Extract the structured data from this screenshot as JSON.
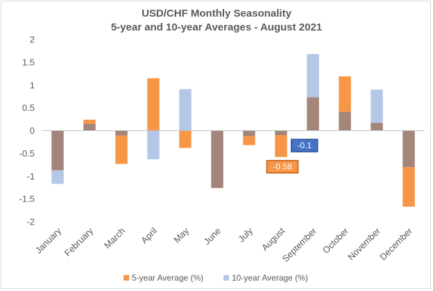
{
  "chart_data": {
    "type": "bar",
    "title": "USD/CHF Monthly Seasonality",
    "subtitle": "5-year and 10-year Averages - August 2021",
    "categories": [
      "January",
      "February",
      "March",
      "April",
      "May",
      "June",
      "July",
      "August",
      "September",
      "October",
      "November",
      "December"
    ],
    "series": [
      {
        "name": "5-year Average (%)",
        "color": "#f79646",
        "values": [
          -0.87,
          0.24,
          -0.73,
          1.15,
          -0.38,
          -1.26,
          -0.32,
          -0.58,
          0.73,
          1.19,
          0.17,
          -1.67
        ]
      },
      {
        "name": "10-year Average (%)",
        "color": "#b4c7e7",
        "values": [
          -1.17,
          0.15,
          -0.11,
          -0.63,
          0.91,
          -1.26,
          -0.12,
          -0.1,
          1.68,
          0.41,
          0.9,
          -0.8
        ]
      }
    ],
    "overlap_color": "#a3857a",
    "yticks": [
      "2",
      "1.5",
      "1",
      "0.5",
      "0",
      "-0.5",
      "-1",
      "-1.5",
      "-2"
    ],
    "ylim": [
      -2,
      2
    ],
    "grid": false,
    "legend_position": "bottom",
    "annotations": [
      {
        "category": "August",
        "series": "5-year Average (%)",
        "text": "-0.58",
        "fill": "#f79646",
        "border": "#c55a11"
      },
      {
        "category": "August",
        "series": "10-year Average (%)",
        "text": "-0.1",
        "fill": "#4472c4",
        "border": "#2f5597"
      }
    ]
  }
}
